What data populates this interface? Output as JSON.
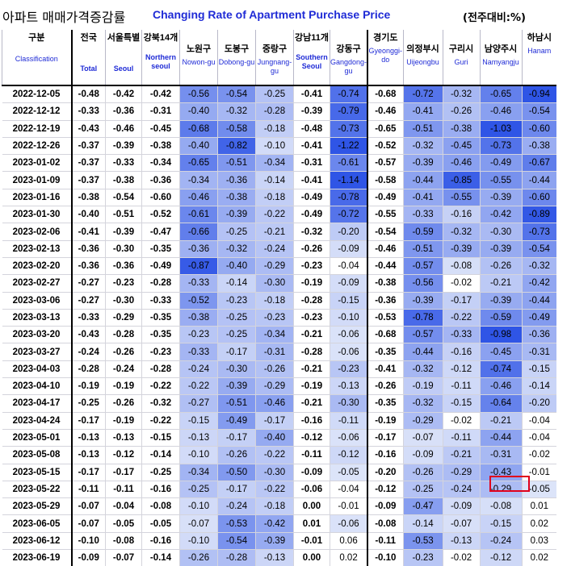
{
  "title": {
    "korean": "아파트 매매가격증감률",
    "english": "Changing Rate of Apartment Purchase Price",
    "unit": "(전주대비:%)"
  },
  "columns": [
    {
      "ko": "구분",
      "en": "Classification"
    },
    {
      "ko": "전국",
      "en": "Total"
    },
    {
      "ko": "서울특별",
      "en": "Seoul"
    },
    {
      "ko": "강북14개",
      "en": "Northern seoul"
    },
    {
      "ko": "노원구",
      "en": "Nowon-gu"
    },
    {
      "ko": "도봉구",
      "en": "Dobong-gu"
    },
    {
      "ko": "중랑구",
      "en": "Jungnang-gu"
    },
    {
      "ko": "강남11개",
      "en": "Southern Seoul"
    },
    {
      "ko": "강동구",
      "en": "Gangdong-gu"
    },
    {
      "ko": "경기도",
      "en": "Gyeonggi-do"
    },
    {
      "ko": "의정부시",
      "en": "Uijeongbu"
    },
    {
      "ko": "구리시",
      "en": "Guri"
    },
    {
      "ko": "남양주시",
      "en": "Namyangju"
    },
    {
      "ko": "하남시",
      "en": "Hanam"
    }
  ],
  "rows": [
    {
      "date": "2022-12-05",
      "v": [
        "-0.48",
        "-0.42",
        "-0.42",
        "-0.56",
        "-0.54",
        "-0.25",
        "-0.41",
        "-0.74",
        "-0.68",
        "-0.72",
        "-0.32",
        "-0.65",
        "-0.94"
      ]
    },
    {
      "date": "2022-12-12",
      "v": [
        "-0.33",
        "-0.36",
        "-0.31",
        "-0.40",
        "-0.32",
        "-0.28",
        "-0.39",
        "-0.79",
        "-0.46",
        "-0.41",
        "-0.26",
        "-0.46",
        "-0.54"
      ]
    },
    {
      "date": "2022-12-19",
      "v": [
        "-0.43",
        "-0.46",
        "-0.45",
        "-0.68",
        "-0.58",
        "-0.18",
        "-0.48",
        "-0.73",
        "-0.65",
        "-0.51",
        "-0.38",
        "-1.03",
        "-0.60"
      ]
    },
    {
      "date": "2022-12-26",
      "v": [
        "-0.37",
        "-0.39",
        "-0.38",
        "-0.40",
        "-0.82",
        "-0.10",
        "-0.41",
        "-1.22",
        "-0.52",
        "-0.32",
        "-0.45",
        "-0.73",
        "-0.38"
      ]
    },
    {
      "date": "2023-01-02",
      "v": [
        "-0.37",
        "-0.33",
        "-0.34",
        "-0.65",
        "-0.51",
        "-0.34",
        "-0.31",
        "-0.61",
        "-0.57",
        "-0.39",
        "-0.46",
        "-0.49",
        "-0.67"
      ]
    },
    {
      "date": "2023-01-09",
      "v": [
        "-0.37",
        "-0.38",
        "-0.36",
        "-0.34",
        "-0.36",
        "-0.14",
        "-0.41",
        "-1.14",
        "-0.58",
        "-0.44",
        "-0.85",
        "-0.55",
        "-0.44"
      ]
    },
    {
      "date": "2023-01-16",
      "v": [
        "-0.38",
        "-0.54",
        "-0.60",
        "-0.46",
        "-0.38",
        "-0.18",
        "-0.49",
        "-0.78",
        "-0.49",
        "-0.41",
        "-0.55",
        "-0.39",
        "-0.60"
      ]
    },
    {
      "date": "2023-01-30",
      "v": [
        "-0.40",
        "-0.51",
        "-0.52",
        "-0.61",
        "-0.39",
        "-0.22",
        "-0.49",
        "-0.72",
        "-0.55",
        "-0.33",
        "-0.16",
        "-0.42",
        "-0.89"
      ]
    },
    {
      "date": "2023-02-06",
      "v": [
        "-0.41",
        "-0.39",
        "-0.47",
        "-0.66",
        "-0.25",
        "-0.21",
        "-0.32",
        "-0.20",
        "-0.54",
        "-0.59",
        "-0.32",
        "-0.30",
        "-0.73"
      ]
    },
    {
      "date": "2023-02-13",
      "v": [
        "-0.36",
        "-0.30",
        "-0.35",
        "-0.36",
        "-0.32",
        "-0.24",
        "-0.26",
        "-0.09",
        "-0.46",
        "-0.51",
        "-0.39",
        "-0.39",
        "-0.54"
      ]
    },
    {
      "date": "2023-02-20",
      "v": [
        "-0.36",
        "-0.36",
        "-0.49",
        "-0.87",
        "-0.40",
        "-0.29",
        "-0.23",
        "-0.04",
        "-0.44",
        "-0.57",
        "-0.08",
        "-0.26",
        "-0.32"
      ]
    },
    {
      "date": "2023-02-27",
      "v": [
        "-0.27",
        "-0.23",
        "-0.28",
        "-0.33",
        "-0.14",
        "-0.30",
        "-0.19",
        "-0.09",
        "-0.38",
        "-0.56",
        "-0.02",
        "-0.21",
        "-0.42"
      ]
    },
    {
      "date": "2023-03-06",
      "v": [
        "-0.27",
        "-0.30",
        "-0.33",
        "-0.52",
        "-0.23",
        "-0.18",
        "-0.28",
        "-0.15",
        "-0.36",
        "-0.39",
        "-0.17",
        "-0.39",
        "-0.44"
      ]
    },
    {
      "date": "2023-03-13",
      "v": [
        "-0.33",
        "-0.29",
        "-0.35",
        "-0.38",
        "-0.25",
        "-0.23",
        "-0.23",
        "-0.10",
        "-0.53",
        "-0.78",
        "-0.22",
        "-0.59",
        "-0.49"
      ]
    },
    {
      "date": "2023-03-20",
      "v": [
        "-0.43",
        "-0.28",
        "-0.35",
        "-0.23",
        "-0.25",
        "-0.34",
        "-0.21",
        "-0.06",
        "-0.68",
        "-0.57",
        "-0.33",
        "-0.98",
        "-0.36"
      ]
    },
    {
      "date": "2023-03-27",
      "v": [
        "-0.24",
        "-0.26",
        "-0.23",
        "-0.33",
        "-0.17",
        "-0.31",
        "-0.28",
        "-0.06",
        "-0.35",
        "-0.44",
        "-0.16",
        "-0.45",
        "-0.31"
      ]
    },
    {
      "date": "2023-04-03",
      "v": [
        "-0.28",
        "-0.24",
        "-0.28",
        "-0.24",
        "-0.30",
        "-0.26",
        "-0.21",
        "-0.23",
        "-0.41",
        "-0.32",
        "-0.12",
        "-0.74",
        "-0.15"
      ]
    },
    {
      "date": "2023-04-10",
      "v": [
        "-0.19",
        "-0.19",
        "-0.22",
        "-0.22",
        "-0.39",
        "-0.29",
        "-0.19",
        "-0.13",
        "-0.26",
        "-0.19",
        "-0.11",
        "-0.46",
        "-0.14"
      ]
    },
    {
      "date": "2023-04-17",
      "v": [
        "-0.25",
        "-0.26",
        "-0.32",
        "-0.27",
        "-0.51",
        "-0.46",
        "-0.21",
        "-0.30",
        "-0.35",
        "-0.32",
        "-0.15",
        "-0.64",
        "-0.20"
      ]
    },
    {
      "date": "2023-04-24",
      "v": [
        "-0.17",
        "-0.19",
        "-0.22",
        "-0.15",
        "-0.49",
        "-0.17",
        "-0.16",
        "-0.11",
        "-0.19",
        "-0.29",
        "-0.02",
        "-0.21",
        "-0.04"
      ]
    },
    {
      "date": "2023-05-01",
      "v": [
        "-0.13",
        "-0.13",
        "-0.15",
        "-0.13",
        "-0.17",
        "-0.40",
        "-0.12",
        "-0.06",
        "-0.17",
        "-0.07",
        "-0.11",
        "-0.44",
        "-0.04"
      ]
    },
    {
      "date": "2023-05-08",
      "v": [
        "-0.13",
        "-0.12",
        "-0.14",
        "-0.10",
        "-0.26",
        "-0.22",
        "-0.11",
        "-0.12",
        "-0.16",
        "-0.09",
        "-0.21",
        "-0.31",
        "-0.02"
      ]
    },
    {
      "date": "2023-05-15",
      "v": [
        "-0.17",
        "-0.17",
        "-0.25",
        "-0.34",
        "-0.50",
        "-0.30",
        "-0.09",
        "-0.05",
        "-0.20",
        "-0.26",
        "-0.29",
        "-0.43",
        "-0.01"
      ]
    },
    {
      "date": "2023-05-22",
      "v": [
        "-0.11",
        "-0.11",
        "-0.16",
        "-0.25",
        "-0.17",
        "-0.22",
        "-0.06",
        "-0.04",
        "-0.12",
        "-0.25",
        "-0.24",
        "-0.29",
        "-0.05"
      ]
    },
    {
      "date": "2023-05-29",
      "v": [
        "-0.07",
        "-0.04",
        "-0.08",
        "-0.10",
        "-0.24",
        "-0.18",
        "0.00",
        "-0.01",
        "-0.09",
        "-0.47",
        "-0.09",
        "-0.08",
        "0.01"
      ]
    },
    {
      "date": "2023-06-05",
      "v": [
        "-0.07",
        "-0.05",
        "-0.05",
        "-0.07",
        "-0.53",
        "-0.42",
        "0.01",
        "-0.06",
        "-0.08",
        "-0.14",
        "-0.07",
        "-0.15",
        "0.02"
      ]
    },
    {
      "date": "2023-06-12",
      "v": [
        "-0.10",
        "-0.08",
        "-0.16",
        "-0.10",
        "-0.54",
        "-0.39",
        "-0.01",
        "0.06",
        "-0.11",
        "-0.53",
        "-0.13",
        "-0.24",
        "0.03"
      ]
    },
    {
      "date": "2023-06-19",
      "v": [
        "-0.09",
        "-0.07",
        "-0.14",
        "-0.26",
        "-0.28",
        "-0.13",
        "0.00",
        "0.02",
        "-0.10",
        "-0.23",
        "-0.02",
        "-0.12",
        "0.02"
      ]
    }
  ],
  "colors": {
    "title_blue": "#1f2bd6",
    "highlight_border": "#e0001b",
    "scale_light": "#e6ebfa",
    "scale_dark": "#2f55e6"
  },
  "highlight": {
    "row": 27,
    "col": 11
  }
}
